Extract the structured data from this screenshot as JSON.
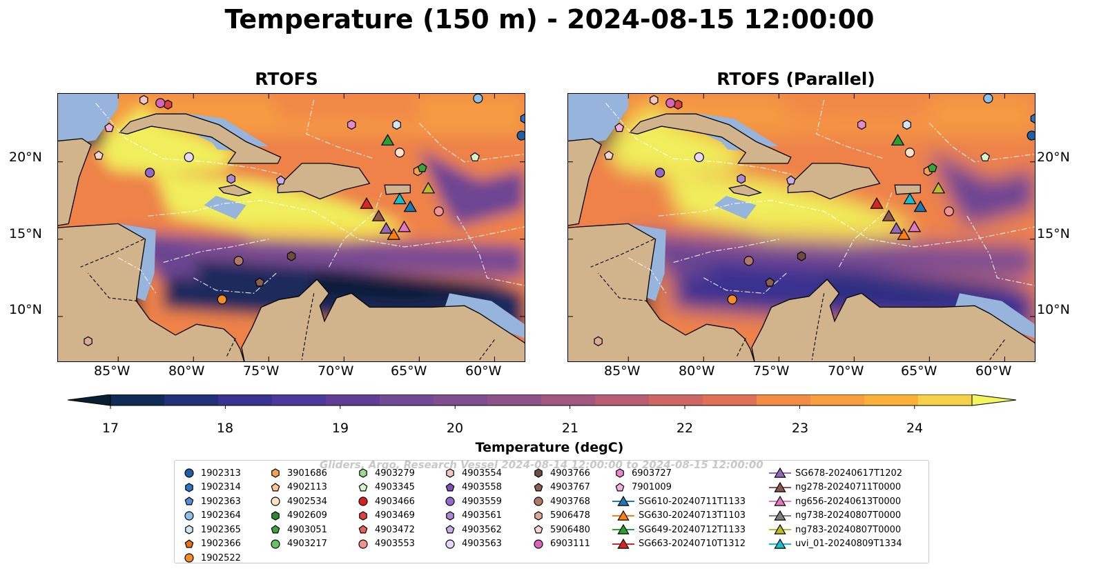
{
  "title": "Temperature (150 m) - 2024-08-15 12:00:00",
  "panels": [
    {
      "title": "RTOFS"
    },
    {
      "title": "RTOFS (Parallel)"
    }
  ],
  "axes": {
    "lat_labels": [
      "20°N",
      "15°N",
      "10°N"
    ],
    "lon_labels": [
      "85°W",
      "80°W",
      "75°W",
      "70°W",
      "65°W",
      "60°W"
    ]
  },
  "colorbar": {
    "label": "Temperature (degC)",
    "ticks": [
      "17",
      "18",
      "19",
      "20",
      "21",
      "22",
      "23",
      "24"
    ],
    "colors": [
      "#081f33",
      "#102b56",
      "#23307a",
      "#38338f",
      "#4b3a9a",
      "#603d96",
      "#704a93",
      "#7f4e8f",
      "#8f5288",
      "#a2577e",
      "#b85e73",
      "#cc6766",
      "#e07056",
      "#f28b46",
      "#f89e3e",
      "#fbb038",
      "#f5d24a",
      "#f2f55b"
    ]
  },
  "legend": {
    "watermark": "Gliders, Argo, Research Vessel 2024-08-14 12:00:00 to 2024-08-15 12:00:00",
    "columns": [
      [
        {
          "label": "1902313",
          "marker": "circle",
          "color": "#1f5fa8"
        },
        {
          "label": "1902314",
          "marker": "hexagon",
          "color": "#2f73c4"
        },
        {
          "label": "1902363",
          "marker": "pentagon",
          "color": "#4f8fd9"
        },
        {
          "label": "1902364",
          "marker": "circle",
          "color": "#8cc0ec"
        },
        {
          "label": "1902365",
          "marker": "hexagon",
          "color": "#cfe6f7"
        },
        {
          "label": "1902366",
          "marker": "pentagon",
          "color": "#e8700e"
        },
        {
          "label": "1902522",
          "marker": "circle",
          "color": "#f58d24"
        }
      ],
      [
        {
          "label": "3901686",
          "marker": "hexagon",
          "color": "#f7a14a"
        },
        {
          "label": "4902113",
          "marker": "pentagon",
          "color": "#fbc58e"
        },
        {
          "label": "4902534",
          "marker": "circle",
          "color": "#fde2c4"
        },
        {
          "label": "4902609",
          "marker": "hexagon",
          "color": "#2e8a2e"
        },
        {
          "label": "4903051",
          "marker": "pentagon",
          "color": "#3aa53a"
        },
        {
          "label": "4903217",
          "marker": "circle",
          "color": "#62c462"
        }
      ],
      [
        {
          "label": "4903279",
          "marker": "hexagon",
          "color": "#9ad98f"
        },
        {
          "label": "4903345",
          "marker": "pentagon",
          "color": "#d6f5cd"
        },
        {
          "label": "4903466",
          "marker": "circle",
          "color": "#d42020"
        },
        {
          "label": "4903469",
          "marker": "hexagon",
          "color": "#dd4040"
        },
        {
          "label": "4903472",
          "marker": "pentagon",
          "color": "#e86060"
        },
        {
          "label": "4903553",
          "marker": "circle",
          "color": "#f39090"
        }
      ],
      [
        {
          "label": "4903554",
          "marker": "hexagon",
          "color": "#f8c6c2"
        },
        {
          "label": "4903558",
          "marker": "pentagon",
          "color": "#7b4fb8"
        },
        {
          "label": "4903559",
          "marker": "circle",
          "color": "#9467c8"
        },
        {
          "label": "4903561",
          "marker": "hexagon",
          "color": "#ab88d6"
        },
        {
          "label": "4903562",
          "marker": "pentagon",
          "color": "#c8aee6"
        },
        {
          "label": "4903563",
          "marker": "circle",
          "color": "#e6d8f5"
        }
      ],
      [
        {
          "label": "4903766",
          "marker": "hexagon",
          "color": "#6e4a3f"
        },
        {
          "label": "4903767",
          "marker": "pentagon",
          "color": "#8c5e50"
        },
        {
          "label": "4903768",
          "marker": "circle",
          "color": "#b07868"
        },
        {
          "label": "5906478",
          "marker": "hexagon",
          "color": "#e0a896"
        },
        {
          "label": "5906480",
          "marker": "pentagon",
          "color": "#f6d6cc"
        },
        {
          "label": "6903111",
          "marker": "circle",
          "color": "#d764b9"
        }
      ],
      [
        {
          "label": "6903727",
          "marker": "hexagon",
          "color": "#e68acb"
        },
        {
          "label": "7901009",
          "marker": "pentagon",
          "color": "#f4b0dc"
        },
        {
          "label": "SG610-20240711T1133",
          "marker": "triangle-line",
          "color": "#1f77b4"
        },
        {
          "label": "SG630-20240713T1103",
          "marker": "triangle-line",
          "color": "#ff7f0e"
        },
        {
          "label": "SG649-20240712T1133",
          "marker": "triangle-line",
          "color": "#2ca02c"
        },
        {
          "label": "SG663-20240710T1312",
          "marker": "triangle-line",
          "color": "#d62728"
        }
      ],
      [
        {
          "label": "SG678-20240617T1202",
          "marker": "triangle-line",
          "color": "#9467bd"
        },
        {
          "label": "ng278-20240711T0000",
          "marker": "triangle-line",
          "color": "#8c564b"
        },
        {
          "label": "ng656-20240613T0000",
          "marker": "triangle-line",
          "color": "#e377c2"
        },
        {
          "label": "ng738-20240807T0000",
          "marker": "triangle-line",
          "color": "#7f7f7f"
        },
        {
          "label": "ng783-20240807T0000",
          "marker": "triangle-line",
          "color": "#bcbd22"
        },
        {
          "label": "uvi_01-20240809T1334",
          "marker": "triangle-line",
          "color": "#17becf"
        }
      ]
    ]
  },
  "map": {
    "land_color": "#d2b48c",
    "shelf_color": "#96b4dc",
    "platforms": [
      {
        "name": "1902313",
        "lon": -58.2,
        "lat": 21.7,
        "marker": "circle",
        "color": "#1f5fa8"
      },
      {
        "name": "1902314",
        "lon": -58.0,
        "lat": 22.8,
        "marker": "hexagon",
        "color": "#2f73c4"
      },
      {
        "name": "1902364",
        "lon": -61.1,
        "lat": 24.1,
        "marker": "circle",
        "color": "#8cc0ec"
      },
      {
        "name": "1902365",
        "lon": -66.5,
        "lat": 22.4,
        "marker": "hexagon",
        "color": "#cfe6f7"
      },
      {
        "name": "1902522",
        "lon": -78.1,
        "lat": 11.1,
        "marker": "circle",
        "color": "#f58d24"
      },
      {
        "name": "4902534",
        "lon": -66.3,
        "lat": 20.6,
        "marker": "circle",
        "color": "#fde2c4"
      },
      {
        "name": "3901686",
        "lon": -65.1,
        "lat": 19.4,
        "marker": "hexagon",
        "color": "#f7a14a"
      },
      {
        "name": "4903051",
        "lon": -64.8,
        "lat": 19.6,
        "marker": "pentagon",
        "color": "#3aa53a"
      },
      {
        "name": "4903345",
        "lon": -61.3,
        "lat": 20.3,
        "marker": "pentagon",
        "color": "#d6f5cd"
      },
      {
        "name": "4903469",
        "lon": -81.7,
        "lat": 23.7,
        "marker": "hexagon",
        "color": "#dd4040"
      },
      {
        "name": "4903553",
        "lon": -63.7,
        "lat": 16.8,
        "marker": "circle",
        "color": "#f39090"
      },
      {
        "name": "4903554",
        "lon": -83.3,
        "lat": 24.0,
        "marker": "hexagon",
        "color": "#f8c6c2"
      },
      {
        "name": "4903559",
        "lon": -82.9,
        "lat": 19.3,
        "marker": "circle",
        "color": "#9467c8"
      },
      {
        "name": "4903561",
        "lon": -77.5,
        "lat": 18.9,
        "marker": "hexagon",
        "color": "#ab88d6"
      },
      {
        "name": "4903562",
        "lon": -74.2,
        "lat": 18.8,
        "marker": "pentagon",
        "color": "#c8aee6"
      },
      {
        "name": "4903563",
        "lon": -80.3,
        "lat": 20.3,
        "marker": "circle",
        "color": "#e6d8f5"
      },
      {
        "name": "4903766",
        "lon": -73.5,
        "lat": 13.9,
        "marker": "hexagon",
        "color": "#6e4a3f"
      },
      {
        "name": "4903767",
        "lon": -75.6,
        "lat": 12.2,
        "marker": "pentagon",
        "color": "#8c5e50"
      },
      {
        "name": "4903768",
        "lon": -77.0,
        "lat": 13.6,
        "marker": "circle",
        "color": "#b07868"
      },
      {
        "name": "5906478",
        "lon": -87.0,
        "lat": 8.4,
        "marker": "hexagon",
        "color": "#e0a896"
      },
      {
        "name": "5906480",
        "lon": -86.3,
        "lat": 20.4,
        "marker": "pentagon",
        "color": "#f6d6cc"
      },
      {
        "name": "6903111",
        "lon": -82.2,
        "lat": 23.8,
        "marker": "circle",
        "color": "#d764b9"
      },
      {
        "name": "6903727",
        "lon": -69.5,
        "lat": 22.4,
        "marker": "hexagon",
        "color": "#e68acb"
      },
      {
        "name": "7901009",
        "lon": -85.6,
        "lat": 22.2,
        "marker": "pentagon",
        "color": "#f4b0dc"
      },
      {
        "name": "SG610-20240711T1133",
        "lon": -65.6,
        "lat": 17.1,
        "marker": "triangle",
        "color": "#1f77b4"
      },
      {
        "name": "SG630-20240713T1103",
        "lon": -66.7,
        "lat": 15.3,
        "marker": "triangle",
        "color": "#ff7f0e"
      },
      {
        "name": "SG649-20240712T1133",
        "lon": -67.1,
        "lat": 21.4,
        "marker": "triangle",
        "color": "#2ca02c"
      },
      {
        "name": "SG663-20240710T1312",
        "lon": -68.5,
        "lat": 17.3,
        "marker": "triangle",
        "color": "#d62728"
      },
      {
        "name": "SG678-20240617T1202",
        "lon": -67.2,
        "lat": 15.7,
        "marker": "triangle",
        "color": "#9467bd"
      },
      {
        "name": "ng278-20240711T0000",
        "lon": -67.7,
        "lat": 16.5,
        "marker": "triangle",
        "color": "#8c564b"
      },
      {
        "name": "ng656-20240613T0000",
        "lon": -66.0,
        "lat": 15.8,
        "marker": "triangle",
        "color": "#e377c2"
      },
      {
        "name": "ng783-20240807T0000",
        "lon": -64.4,
        "lat": 18.3,
        "marker": "triangle",
        "color": "#bcbd22"
      },
      {
        "name": "uvi_01-20240809T1334",
        "lon": -66.3,
        "lat": 17.6,
        "marker": "triangle",
        "color": "#17becf"
      }
    ]
  }
}
